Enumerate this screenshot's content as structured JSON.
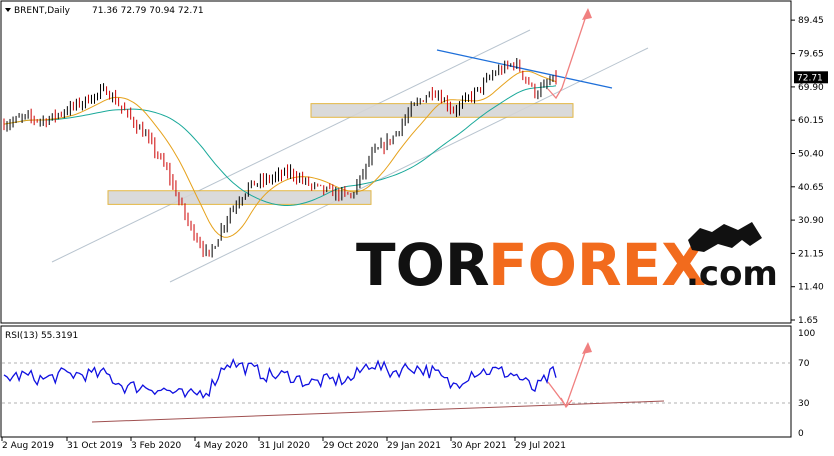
{
  "header": {
    "symbol": "BRENT,Daily",
    "ohlc": "71.36 72.79 70.94 72.71"
  },
  "rsi_label": "RSI(13) 55.3191",
  "logo": {
    "part1": "TOR",
    "part2": "FOREX",
    "part3": ".com"
  },
  "colors": {
    "bull": "#000000",
    "bear": "#cc0000",
    "ma_fast": "#e6a21c",
    "ma_slow": "#1aa99a",
    "channel": "#b8c4cf",
    "resistance_line": "#1e6fd9",
    "zone_fill": "#d6d6d6",
    "zone_border": "#e0b030",
    "forecast_arrow": "#f08080",
    "rsi_line": "#1010e0",
    "rsi_support": "#a05050"
  },
  "chart_data": [
    {
      "type": "candlestick",
      "title": "BRENT,Daily",
      "x_ticks": [
        "2 Aug 2019",
        "31 Oct 2019",
        "3 Feb 2020",
        "4 May 2020",
        "31 Jul 2020",
        "29 Oct 2020",
        "29 Jan 2021",
        "30 Apr 2021",
        "29 Jul 2021"
      ],
      "y_ticks": [
        89.45,
        79.65,
        69.9,
        60.15,
        50.4,
        40.65,
        30.9,
        21.15,
        11.4,
        1.65
      ],
      "current_price": 72.71,
      "ylim": [
        1.65,
        93
      ],
      "price_path": [
        {
          "x": "Aug 2019",
          "y": 59
        },
        {
          "x": "Sep 2019",
          "y": 61
        },
        {
          "x": "Oct 2019",
          "y": 60
        },
        {
          "x": "Nov 2019",
          "y": 63
        },
        {
          "x": "Dec 2019",
          "y": 66
        },
        {
          "x": "early Jan 2020",
          "y": 69
        },
        {
          "x": "Jan 2020",
          "y": 62
        },
        {
          "x": "Feb 2020",
          "y": 55
        },
        {
          "x": "early Mar 2020",
          "y": 45
        },
        {
          "x": "mid Mar 2020",
          "y": 30
        },
        {
          "x": "Apr 2020",
          "y": 20
        },
        {
          "x": "May 2020",
          "y": 33
        },
        {
          "x": "Jun 2020",
          "y": 41
        },
        {
          "x": "Jul 2020",
          "y": 43
        },
        {
          "x": "Aug 2020",
          "y": 45
        },
        {
          "x": "Sep 2020",
          "y": 41
        },
        {
          "x": "Oct 2020",
          "y": 39
        },
        {
          "x": "early Nov 2020",
          "y": 38
        },
        {
          "x": "Dec 2020",
          "y": 50
        },
        {
          "x": "Jan 2021",
          "y": 55
        },
        {
          "x": "Feb 2021",
          "y": 64
        },
        {
          "x": "Mar 2021",
          "y": 69
        },
        {
          "x": "Apr 2021",
          "y": 63
        },
        {
          "x": "May 2021",
          "y": 68
        },
        {
          "x": "Jun 2021",
          "y": 74
        },
        {
          "x": "early Jul 2021",
          "y": 77
        },
        {
          "x": "late Jul 2021",
          "y": 68
        },
        {
          "x": "Aug 2021",
          "y": 72.71
        }
      ],
      "support_zones": [
        {
          "from": 35.5,
          "to": 39.5
        },
        {
          "from": 61,
          "to": 65
        }
      ],
      "forecast": "dip to about 66 then rise toward 95"
    },
    {
      "type": "line",
      "title": "RSI(13) 55.3191",
      "y_ticks": [
        100,
        70,
        30,
        0
      ],
      "ylim": [
        0,
        100
      ],
      "levels": [
        30,
        70
      ],
      "current_value": 55.3191
    }
  ]
}
